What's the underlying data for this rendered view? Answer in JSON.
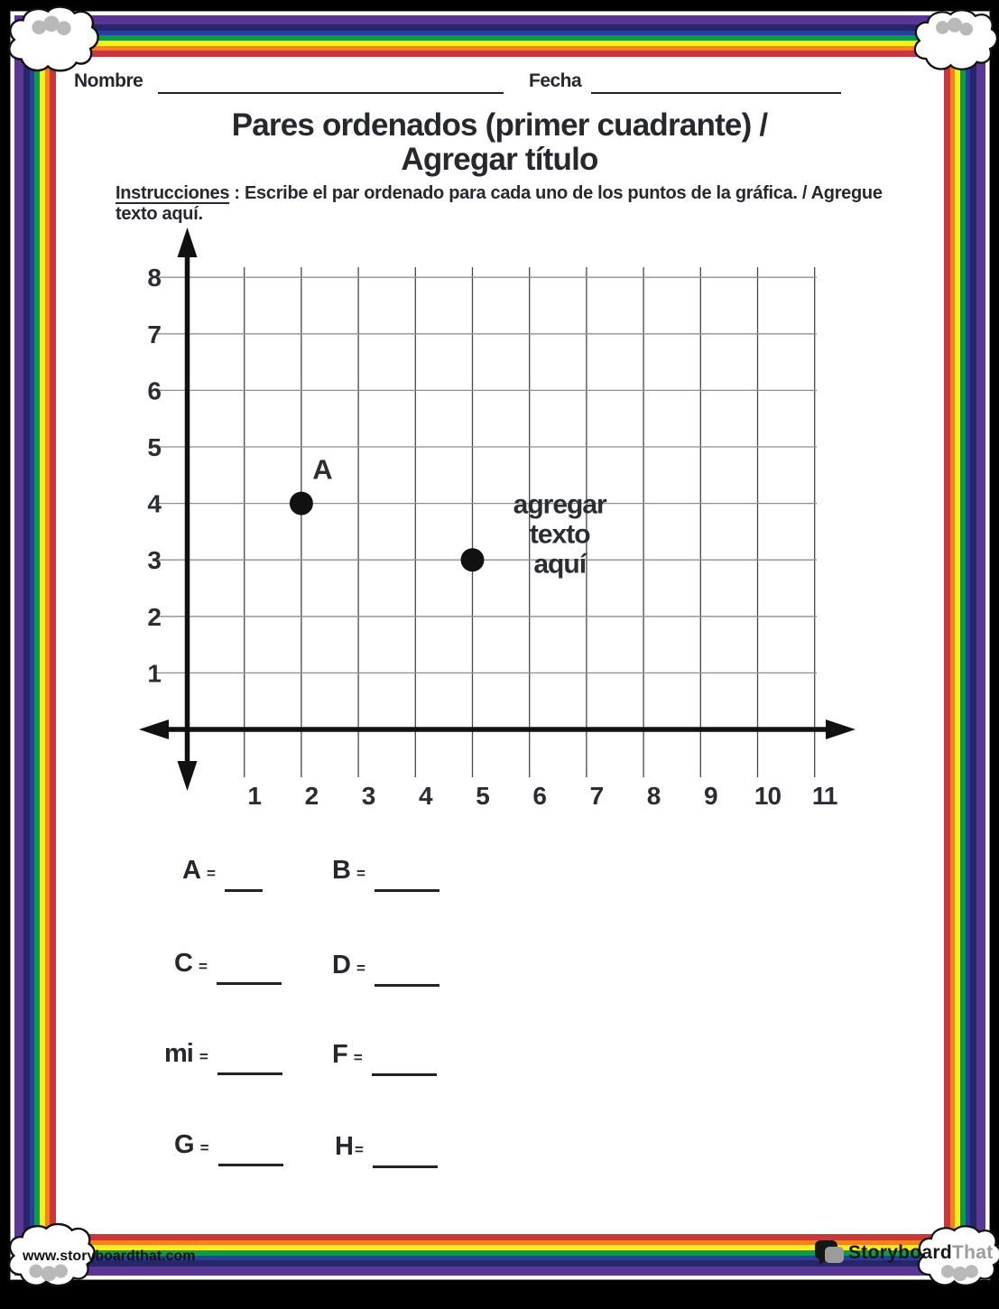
{
  "header": {
    "nombre_label": "Nombre",
    "fecha_label": "Fecha"
  },
  "title": {
    "line1": "Pares ordenados (primer cuadrante) /",
    "line2": "Agregar título"
  },
  "instructions": {
    "label": "Instrucciones",
    "separator": " : ",
    "text": "Escribe el par ordenado para cada uno de los puntos de la gráfica. / Agregue texto aquí."
  },
  "chart_data": {
    "type": "scatter",
    "points": [
      {
        "label": "A",
        "x": 2,
        "y": 4
      },
      {
        "label": "",
        "x": 5,
        "y": 3
      }
    ],
    "x_ticks": [
      1,
      2,
      3,
      4,
      5,
      6,
      7,
      8,
      9,
      10,
      11
    ],
    "y_ticks": [
      1,
      2,
      3,
      4,
      5,
      6,
      7,
      8
    ],
    "xlim": [
      0,
      11.7
    ],
    "ylim": [
      0,
      8.8
    ],
    "grid": true,
    "annotation": {
      "lines": [
        "agregar",
        "texto",
        "aquí"
      ],
      "x": 6.53,
      "y": 3.3
    },
    "title": "",
    "xlabel": "",
    "ylabel": "",
    "legend": "none"
  },
  "answers": [
    {
      "letter": "A",
      "eq": "="
    },
    {
      "letter": "B",
      "eq": "="
    },
    {
      "letter": "C",
      "eq": "="
    },
    {
      "letter": "D",
      "eq": "="
    },
    {
      "letter": "mi",
      "eq": "="
    },
    {
      "letter": "F",
      "eq": "="
    },
    {
      "letter": "G",
      "eq": "="
    },
    {
      "letter": "H",
      "eq": "="
    }
  ],
  "footer": {
    "website": "www.storyboardthat.com",
    "logo_primary": "Storyboard",
    "logo_secondary": "That"
  },
  "colors": {
    "rainbow": [
      "#5a3794",
      "#29256b",
      "#2a3f9b",
      "#0c9b48",
      "#f9ed1f",
      "#f6821f",
      "#c9363c"
    ],
    "text": "#26282e",
    "grid_horizontal": "#8f8f8f",
    "grid_vertical": "#474747",
    "axis": "#111111",
    "point": "#111111",
    "logo_gray": "#9c9c9c",
    "cloud_squiggle": "#b9b9b9"
  }
}
